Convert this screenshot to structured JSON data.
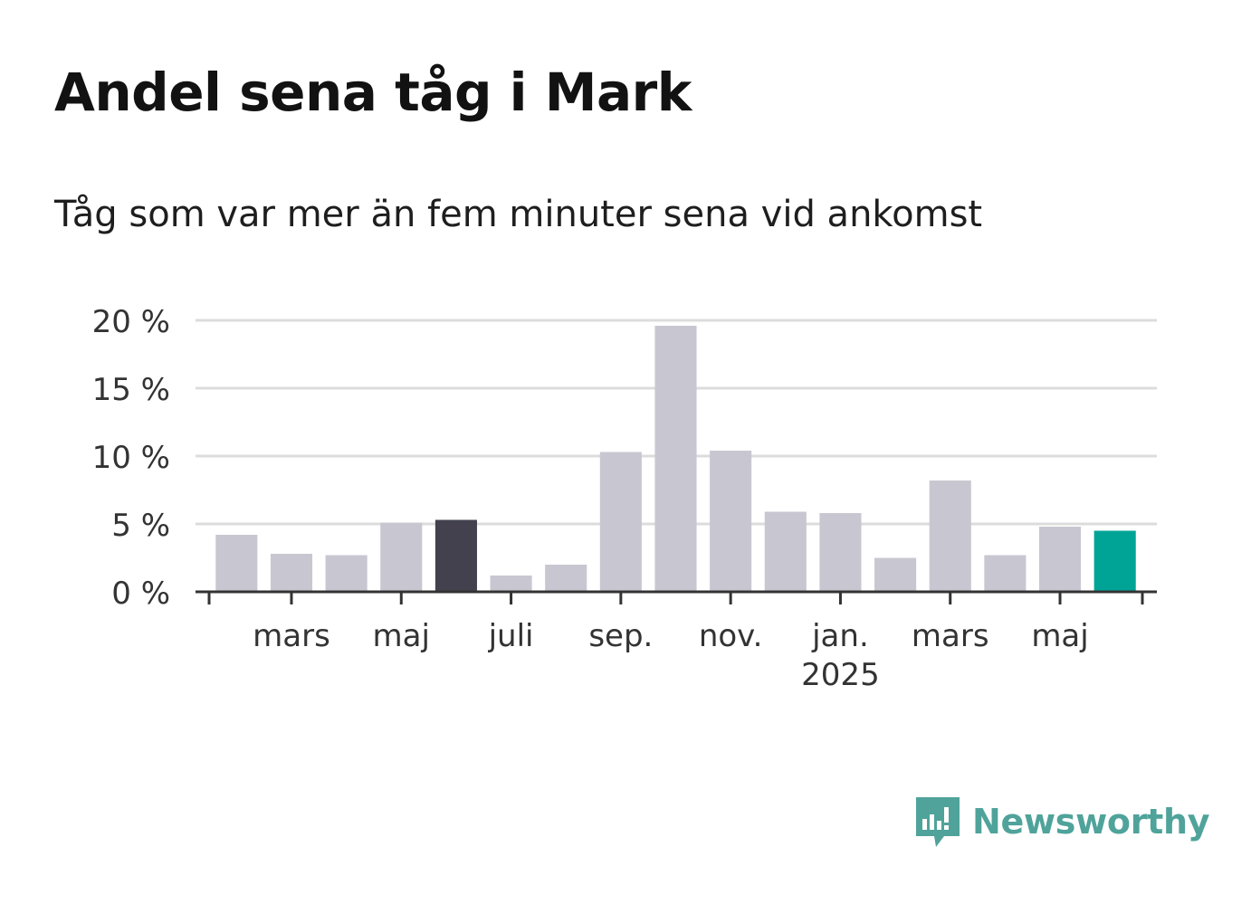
{
  "title": "Andel sena tåg i Mark",
  "subtitle": "Tåg som var mer än fem minuter sena vid ankomst",
  "brand": "Newsworthy",
  "colors": {
    "bar_default": "#c8c7d1",
    "bar_highlight": "#42414d",
    "bar_latest": "#00a497",
    "grid": "#dcdcdc",
    "axis": "#333333",
    "brand": "#4fa39a"
  },
  "chart_data": {
    "type": "bar",
    "title": "",
    "xlabel": "",
    "ylabel": "",
    "ylim": [
      0,
      20
    ],
    "yticks": [
      "0 %",
      "5 %",
      "10 %",
      "15 %",
      "20 %"
    ],
    "grid": true,
    "categories": [
      "2024-02",
      "2024-03",
      "2024-04",
      "2024-05",
      "2024-06",
      "2024-07",
      "2024-08",
      "2024-09",
      "2024-10",
      "2024-11",
      "2024-12",
      "2025-01",
      "2025-02",
      "2025-03",
      "2025-04",
      "2025-05",
      "2025-06"
    ],
    "values": [
      4.2,
      2.8,
      2.7,
      5.1,
      5.3,
      1.2,
      2.0,
      10.3,
      19.6,
      10.4,
      5.9,
      5.8,
      2.5,
      8.2,
      2.7,
      4.8,
      4.5
    ],
    "highlight": {
      "2024-06": "bar_highlight",
      "2025-06": "bar_latest"
    },
    "xtick_labels": [
      {
        "category": "2024-03",
        "label": "mars",
        "sublabel": ""
      },
      {
        "category": "2024-05",
        "label": "maj",
        "sublabel": ""
      },
      {
        "category": "2024-07",
        "label": "juli",
        "sublabel": ""
      },
      {
        "category": "2024-09",
        "label": "sep.",
        "sublabel": ""
      },
      {
        "category": "2024-11",
        "label": "nov.",
        "sublabel": ""
      },
      {
        "category": "2025-01",
        "label": "jan.",
        "sublabel": "2025"
      },
      {
        "category": "2025-03",
        "label": "mars",
        "sublabel": ""
      },
      {
        "category": "2025-05",
        "label": "maj",
        "sublabel": ""
      }
    ]
  }
}
